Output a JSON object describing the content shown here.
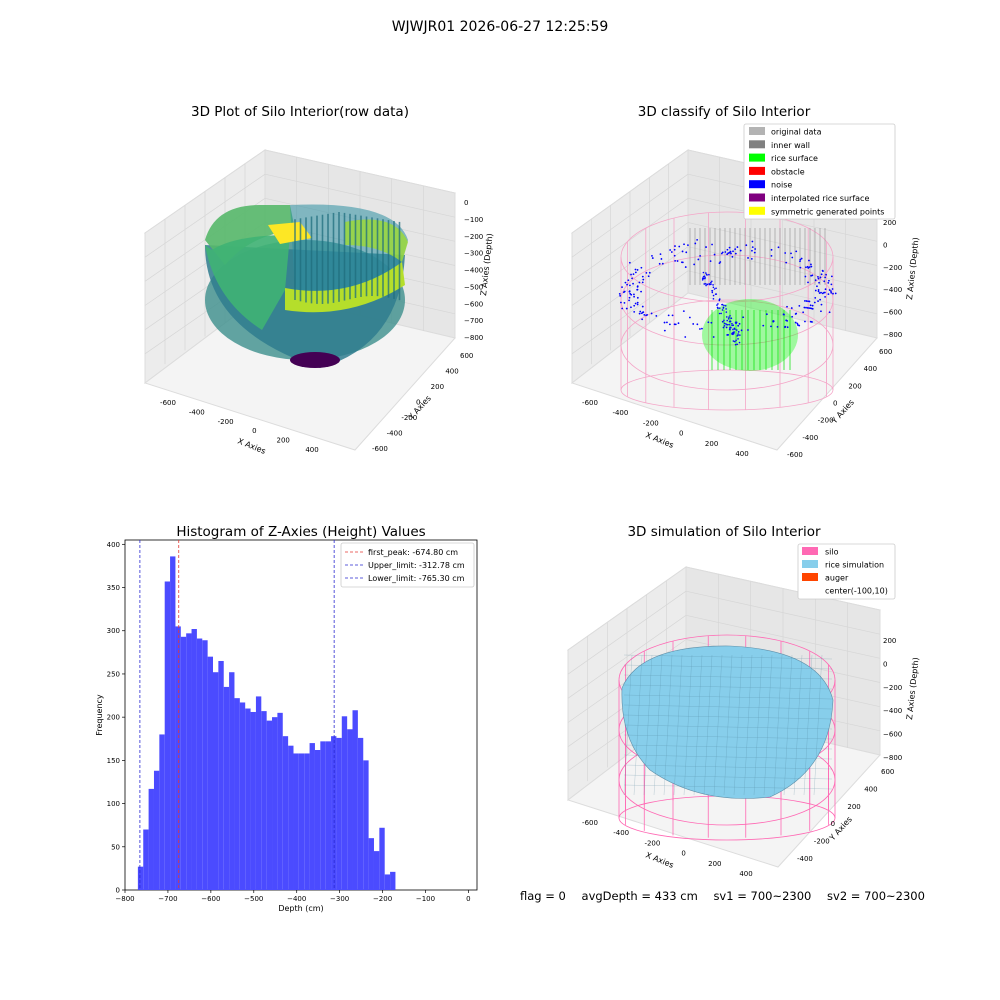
{
  "figure_title": "WJWJR01 2026-06-27 12:25:59",
  "status": {
    "flag": "flag = 0",
    "avg_depth": "avgDepth = 433 cm",
    "sv1": "sv1 = 700~2300",
    "sv2": "sv2 = 700~2300"
  },
  "colors": {
    "hist_bar": "#4b4bff",
    "first_peak": "#e53935",
    "limit": "#2a2ad0",
    "silo": "#ff69b4",
    "rice_simulation": "#87cefa",
    "auger": "#ff4500",
    "original_data": "#b3b3b3",
    "inner_wall": "#808080",
    "rice_surface": "#00ff00",
    "obstacle": "#ff0000",
    "noise": "#0000ff",
    "interpolated_rice_surface": "#800080",
    "symmetric_generated_points": "#ffff00"
  },
  "panels": {
    "raw": {
      "title": "3D Plot of Silo Interior(row data)",
      "xlabel": "X Axies",
      "ylabel": "Y Axies",
      "zlabel": "Z Axies (Depth)",
      "x_ticks": [
        "-600",
        "-400",
        "-200",
        "0",
        "200",
        "400"
      ],
      "y_ticks": [
        "-600",
        "-400",
        "-200",
        "0",
        "200",
        "400",
        "600"
      ],
      "z_ticks": [
        "0",
        "−100",
        "−200",
        "−300",
        "−400",
        "−500",
        "−600",
        "−700",
        "−800"
      ]
    },
    "classify": {
      "title": "3D classify of Silo Interior",
      "xlabel": "X Axies",
      "ylabel": "Y Axies",
      "zlabel": "Z Axies (Depth)",
      "x_ticks": [
        "-600",
        "-400",
        "-200",
        "0",
        "200",
        "400"
      ],
      "y_ticks": [
        "-600",
        "-400",
        "-200",
        "0",
        "200",
        "400",
        "600"
      ],
      "z_ticks": [
        "200",
        "0",
        "−200",
        "−400",
        "−600",
        "−800"
      ],
      "legend": [
        {
          "label": "original data",
          "color": "#b3b3b3"
        },
        {
          "label": "inner wall",
          "color": "#808080"
        },
        {
          "label": "rice surface",
          "color": "#00ff00"
        },
        {
          "label": "obstacle",
          "color": "#ff0000"
        },
        {
          "label": "noise",
          "color": "#0000ff"
        },
        {
          "label": "interpolated rice surface",
          "color": "#800080"
        },
        {
          "label": "symmetric generated points",
          "color": "#ffff00"
        }
      ]
    },
    "simulation": {
      "title": "3D simulation of Silo Interior",
      "xlabel": "X Axies",
      "ylabel": "Y Axies",
      "zlabel": "Z Axies (Depth)",
      "x_ticks": [
        "-600",
        "-400",
        "-200",
        "0",
        "200",
        "400"
      ],
      "y_ticks": [
        "-400",
        "-200",
        "0",
        "200",
        "400",
        "600"
      ],
      "z_ticks": [
        "200",
        "0",
        "−200",
        "−400",
        "−600",
        "−800"
      ],
      "legend": [
        {
          "label": "silo",
          "color": "#ff69b4"
        },
        {
          "label": "rice simulation",
          "color": "#87ceeb"
        },
        {
          "label": "auger",
          "color": "#ff4500"
        },
        {
          "label": "center(-100,10)",
          "color": ""
        }
      ]
    }
  },
  "chart_data": {
    "type": "bar",
    "title": "Histogram of Z-Axies (Height) Values",
    "xlabel": "Depth (cm)",
    "ylabel": "Frequency",
    "xlim": [
      -800,
      20
    ],
    "ylim": [
      0,
      405
    ],
    "x_ticks": [
      -800,
      -700,
      -600,
      -500,
      -400,
      -300,
      -200,
      -100,
      0
    ],
    "x_tick_labels": [
      "−800",
      "−700",
      "−600",
      "−500",
      "−400",
      "−300",
      "−200",
      "−100",
      "0"
    ],
    "y_ticks": [
      0,
      50,
      100,
      150,
      200,
      250,
      300,
      350,
      400
    ],
    "bin_start": -770,
    "bin_width": 12.5,
    "values": [
      27,
      70,
      117,
      138,
      180,
      357,
      386,
      305,
      293,
      297,
      302,
      291,
      289,
      270,
      252,
      265,
      235,
      252,
      222,
      217,
      210,
      206,
      224,
      207,
      196,
      200,
      205,
      178,
      167,
      158,
      158,
      158,
      170,
      162,
      172,
      172,
      178,
      176,
      201,
      186,
      208,
      176,
      150,
      60,
      45,
      72,
      18,
      21
    ],
    "vlines": [
      {
        "label": "first_peak: -674.80 cm",
        "x": -674.8,
        "color": "#e53935"
      },
      {
        "label": "Upper_limit: -312.78 cm",
        "x": -312.78,
        "color": "#2a2ad0"
      },
      {
        "label": "Lower_limit: -765.30 cm",
        "x": -765.3,
        "color": "#2a2ad0"
      }
    ],
    "legend_position": "top-right"
  }
}
